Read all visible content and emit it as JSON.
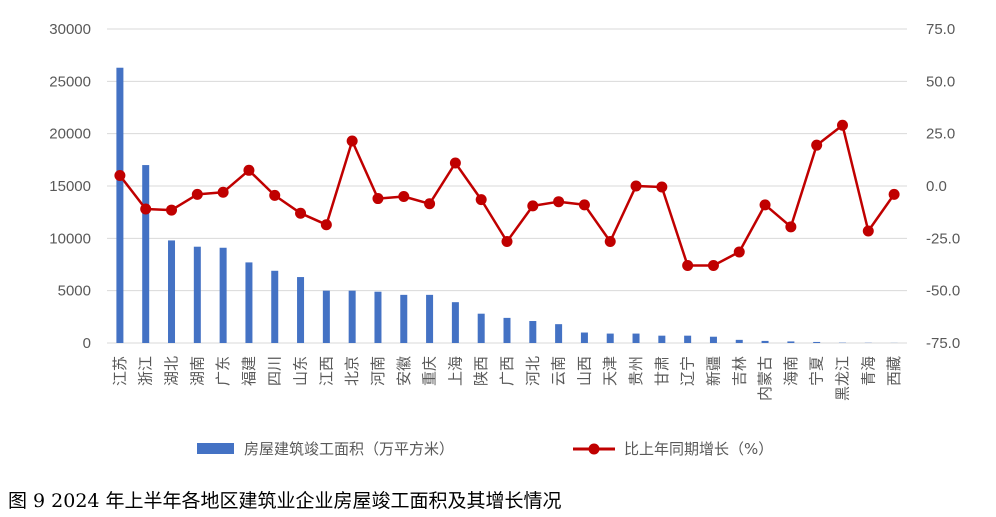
{
  "chart_data": {
    "type": "bar",
    "caption": "图 9 2024 年上半年各地区建筑业企业房屋竣工面积及其增长情况",
    "categories": [
      "江苏",
      "浙江",
      "湖北",
      "湖南",
      "广东",
      "福建",
      "四川",
      "山东",
      "江西",
      "北京",
      "河南",
      "安徽",
      "重庆",
      "上海",
      "陕西",
      "广西",
      "河北",
      "云南",
      "山西",
      "天津",
      "贵州",
      "甘肃",
      "辽宁",
      "新疆",
      "吉林",
      "内蒙古",
      "海南",
      "宁夏",
      "黑龙江",
      "青海",
      "西藏"
    ],
    "series": [
      {
        "name": "房屋建筑竣工面积（万平方米）",
        "type": "bar",
        "axis": "left",
        "color": "#4472C4",
        "values": [
          26300,
          17000,
          9800,
          9200,
          9100,
          7700,
          6900,
          6300,
          5000,
          5000,
          4900,
          4600,
          4600,
          3900,
          2800,
          2400,
          2100,
          1800,
          1000,
          900,
          900,
          700,
          700,
          600,
          300,
          200,
          150,
          100,
          30,
          20,
          10
        ]
      },
      {
        "name": "比上年同期增长（%）",
        "type": "line",
        "axis": "right",
        "color": "#C00000",
        "values": [
          5.0,
          -11.0,
          -11.5,
          -4.0,
          -3.0,
          7.5,
          -4.5,
          -13.0,
          -18.5,
          21.5,
          -6.0,
          -5.0,
          -8.5,
          11.0,
          -6.5,
          -26.5,
          -9.5,
          -7.5,
          -9.0,
          -26.5,
          0.0,
          -0.5,
          -38.0,
          -38.0,
          -31.5,
          -9.0,
          -19.5,
          19.5,
          29.0,
          -21.5,
          -4.0
        ]
      }
    ],
    "y_left": {
      "ylim": [
        0,
        30000
      ],
      "ticks": [
        "0",
        "5000",
        "10000",
        "15000",
        "20000",
        "25000",
        "30000"
      ]
    },
    "y_right": {
      "ylim": [
        -75,
        75
      ],
      "ticks": [
        "-75.0",
        "-50.0",
        "-25.0",
        "0.0",
        "25.0",
        "50.0",
        "75.0"
      ]
    },
    "grid": true,
    "legend": "bottom"
  }
}
